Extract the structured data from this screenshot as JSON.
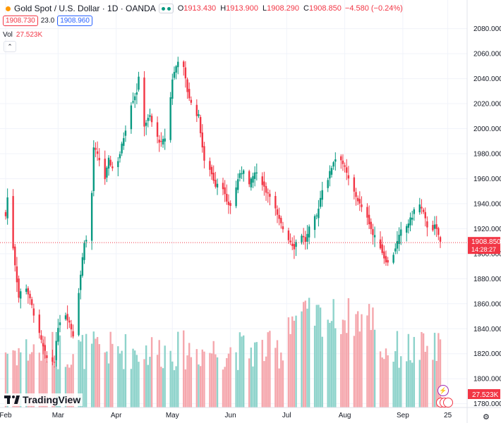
{
  "header": {
    "symbol": "Gold Spot / U.S. Dollar · 1D · OANDA",
    "open_label": "O",
    "open": "1913.430",
    "high_label": "H",
    "high": "1913.900",
    "low_label": "L",
    "low": "1908.290",
    "close_label": "C",
    "close": "1908.850",
    "change": "−4.580 (−0.24%)",
    "bid": "1908.730",
    "spread": "23.0",
    "ask": "1908.960",
    "vol_label": "Vol",
    "vol_value": "27.523K"
  },
  "logo_text": "TradingView",
  "colors": {
    "up": "#089981",
    "down": "#f23645",
    "vol_up": "#8ed3cb",
    "vol_down": "#f5a7ad",
    "grid": "#f0f3fa"
  },
  "icons": [
    "chevron-up-icon",
    "eye-icon",
    "tradingview-logo-icon",
    "lightning-icon",
    "flag-icon",
    "gear-icon"
  ],
  "chart_data": {
    "type": "candlestick",
    "y_ticks": [
      "2080.000",
      "2060.000",
      "2040.000",
      "2020.000",
      "2000.000",
      "1980.000",
      "1960.000",
      "1940.000",
      "1920.000",
      "1900.000",
      "1880.000",
      "1860.000",
      "1840.000",
      "1820.000",
      "1800.000",
      "1780.000"
    ],
    "ylim": [
      1777,
      2086
    ],
    "x_ticks": [
      {
        "label": "Feb",
        "day": 0
      },
      {
        "label": "Mar",
        "day": 28
      },
      {
        "label": "Apr",
        "day": 59
      },
      {
        "label": "May",
        "day": 89
      },
      {
        "label": "Jun",
        "day": 120
      },
      {
        "label": "Jul",
        "day": 150
      },
      {
        "label": "Aug",
        "day": 181
      },
      {
        "label": "Sep",
        "day": 212
      },
      {
        "label": "25",
        "day": 236
      }
    ],
    "last_price_label": "1908.850",
    "countdown_label": "14:28:27",
    "last_price": 1908.85,
    "volume_label": "27.523K",
    "waypoints": [
      [
        0,
        1930
      ],
      [
        2,
        1960
      ],
      [
        4,
        1905
      ],
      [
        7,
        1865
      ],
      [
        10,
        1878
      ],
      [
        14,
        1858
      ],
      [
        17,
        1840
      ],
      [
        20,
        1825
      ],
      [
        23,
        1812
      ],
      [
        26,
        1815
      ],
      [
        28,
        1842
      ],
      [
        31,
        1855
      ],
      [
        34,
        1845
      ],
      [
        37,
        1830
      ],
      [
        39,
        1870
      ],
      [
        42,
        1910
      ],
      [
        45,
        1912
      ],
      [
        47,
        1985
      ],
      [
        50,
        1975
      ],
      [
        53,
        1960
      ],
      [
        55,
        1975
      ],
      [
        58,
        1965
      ],
      [
        61,
        1980
      ],
      [
        64,
        2000
      ],
      [
        67,
        2020
      ],
      [
        70,
        2030
      ],
      [
        71,
        2040
      ],
      [
        74,
        2003
      ],
      [
        77,
        2010
      ],
      [
        80,
        1995
      ],
      [
        83,
        1988
      ],
      [
        86,
        1995
      ],
      [
        89,
        2040
      ],
      [
        92,
        2055
      ],
      [
        95,
        2048
      ],
      [
        97,
        2030
      ],
      [
        100,
        2015
      ],
      [
        103,
        2010
      ],
      [
        106,
        1973
      ],
      [
        109,
        1968
      ],
      [
        112,
        1955
      ],
      [
        115,
        1960
      ],
      [
        118,
        1940
      ],
      [
        121,
        1938
      ],
      [
        124,
        1960
      ],
      [
        127,
        1968
      ],
      [
        130,
        1955
      ],
      [
        133,
        1965
      ],
      [
        136,
        1960
      ],
      [
        139,
        1950
      ],
      [
        142,
        1946
      ],
      [
        145,
        1930
      ],
      [
        148,
        1920
      ],
      [
        151,
        1912
      ],
      [
        154,
        1905
      ],
      [
        157,
        1918
      ],
      [
        160,
        1910
      ],
      [
        163,
        1925
      ],
      [
        166,
        1930
      ],
      [
        169,
        1952
      ],
      [
        172,
        1960
      ],
      [
        175,
        1974
      ],
      [
        178,
        1980
      ],
      [
        181,
        1968
      ],
      [
        184,
        1955
      ],
      [
        187,
        1946
      ],
      [
        190,
        1936
      ],
      [
        193,
        1930
      ],
      [
        196,
        1915
      ],
      [
        199,
        1910
      ],
      [
        202,
        1897
      ],
      [
        205,
        1890
      ],
      [
        208,
        1905
      ],
      [
        211,
        1918
      ],
      [
        214,
        1922
      ],
      [
        217,
        1930
      ],
      [
        219,
        1940
      ],
      [
        221,
        1939
      ],
      [
        223,
        1932
      ],
      [
        225,
        1922
      ],
      [
        227,
        1918
      ],
      [
        229,
        1922
      ],
      [
        231,
        1915
      ],
      [
        232,
        1909
      ]
    ],
    "volume_scale": [
      0,
      82
    ]
  }
}
